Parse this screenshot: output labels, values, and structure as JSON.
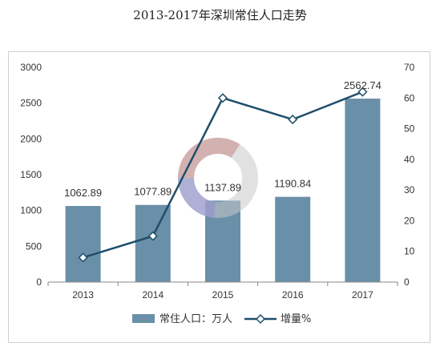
{
  "title": "2013-2017年深圳常住人口走势",
  "colors": {
    "bar": "#6a8fa8",
    "line": "#1f4e6b",
    "marker_fill": "#ffffff",
    "axis": "#888888"
  },
  "chart_data": {
    "type": "bar",
    "categories": [
      "2013",
      "2014",
      "2015",
      "2016",
      "2017"
    ],
    "series": [
      {
        "name": "常住人口：万人",
        "type": "bar",
        "axis": "left",
        "values": [
          1062.89,
          1077.89,
          1137.89,
          1190.84,
          2562.74
        ],
        "labels": [
          "1062.89",
          "1077.89",
          "1137.89",
          "1190.84",
          "2562.74"
        ]
      },
      {
        "name": "增量%",
        "type": "line",
        "axis": "right",
        "values": [
          8,
          15,
          60,
          53,
          62
        ]
      }
    ],
    "ylim_left": [
      0,
      3000
    ],
    "yticks_left": [
      0,
      500,
      1000,
      1500,
      2000,
      2500,
      3000
    ],
    "ylim_right": [
      0,
      70
    ],
    "yticks_right": [
      0,
      10,
      20,
      30,
      40,
      50,
      60,
      70
    ],
    "legend_position": "bottom",
    "grid": false
  }
}
